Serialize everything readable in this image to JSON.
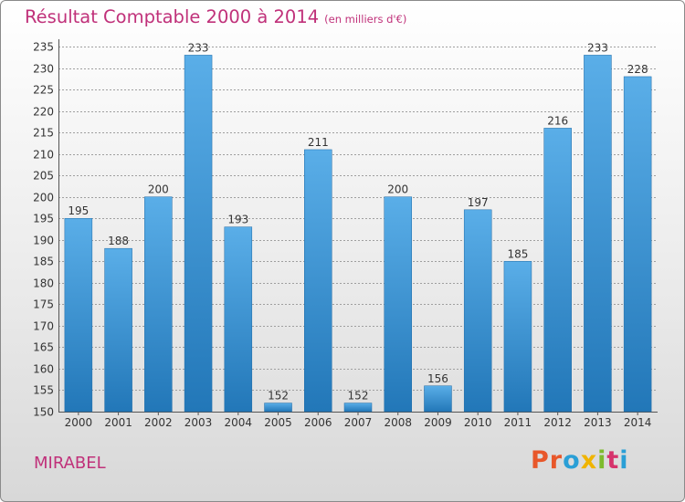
{
  "header": {
    "title": "Résultat Comptable 2000 à 2014",
    "subtitle": "(en milliers d'€)"
  },
  "footer": {
    "commune": "MIRABEL",
    "logo_text": "Proxiti",
    "logo_colors": [
      "#e8572a",
      "#e8572a",
      "#2a9fd6",
      "#f0b400",
      "#7dbb2d",
      "#d6336c",
      "#2a9fd6"
    ]
  },
  "colors": {
    "title": "#c0317a",
    "bar_top": "#5aaee8",
    "bar_bottom": "#2277b8",
    "grid": "#9f9f9f",
    "axis_text": "#333333"
  },
  "chart_data": {
    "type": "bar",
    "title": "Résultat Comptable 2000 à 2014",
    "subtitle": "(en milliers d'€)",
    "categories": [
      "2000",
      "2001",
      "2002",
      "2003",
      "2004",
      "2005",
      "2006",
      "2007",
      "2008",
      "2009",
      "2010",
      "2011",
      "2012",
      "2013",
      "2014"
    ],
    "values": [
      195,
      188,
      200,
      233,
      193,
      152,
      211,
      152,
      200,
      156,
      197,
      185,
      216,
      233,
      228
    ],
    "ylim": [
      150,
      235
    ],
    "yticks": [
      150,
      155,
      160,
      165,
      170,
      175,
      180,
      185,
      190,
      195,
      200,
      205,
      210,
      215,
      220,
      225,
      230,
      235
    ],
    "grid": true,
    "data_labels": true
  }
}
